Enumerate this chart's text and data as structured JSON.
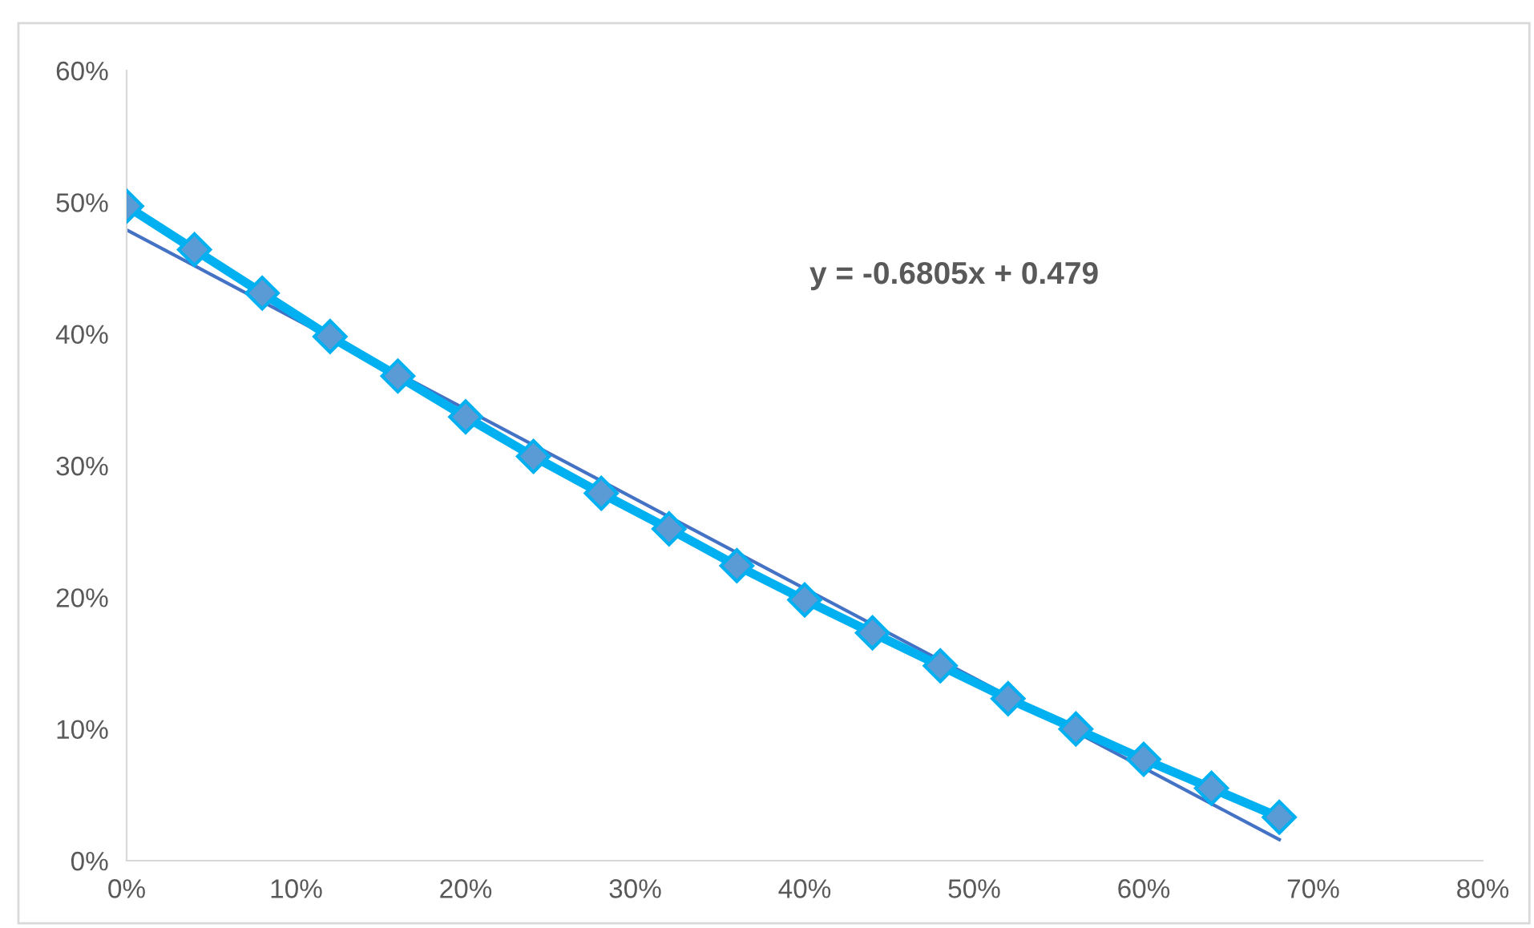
{
  "chart_data": {
    "type": "line",
    "xlim": [
      0,
      80
    ],
    "ylim": [
      0,
      60
    ],
    "xticks": [
      {
        "value": 0,
        "label": "0%"
      },
      {
        "value": 10,
        "label": "10%"
      },
      {
        "value": 20,
        "label": "20%"
      },
      {
        "value": 30,
        "label": "30%"
      },
      {
        "value": 40,
        "label": "40%"
      },
      {
        "value": 50,
        "label": "50%"
      },
      {
        "value": 60,
        "label": "60%"
      },
      {
        "value": 70,
        "label": "70%"
      },
      {
        "value": 80,
        "label": "80%"
      }
    ],
    "yticks": [
      {
        "value": 0,
        "label": "0%"
      },
      {
        "value": 10,
        "label": "10%"
      },
      {
        "value": 20,
        "label": "20%"
      },
      {
        "value": 30,
        "label": "30%"
      },
      {
        "value": 40,
        "label": "40%"
      },
      {
        "value": 50,
        "label": "50%"
      },
      {
        "value": 60,
        "label": "60%"
      }
    ],
    "grid": false,
    "legend": false,
    "series": [
      {
        "color": "#00b0f0",
        "marker": "diamond",
        "x": [
          0,
          4,
          8,
          12,
          16,
          20,
          24,
          28,
          32,
          36,
          40,
          44,
          48,
          52,
          56,
          60,
          64,
          68
        ],
        "values": [
          49.7,
          46.4,
          43.1,
          39.8,
          36.8,
          33.7,
          30.7,
          27.9,
          25.2,
          22.4,
          19.8,
          17.3,
          14.8,
          12.3,
          10.0,
          7.7,
          5.5,
          3.3
        ]
      },
      {
        "color": "#4472c4",
        "marker": "none",
        "x": [
          0,
          68
        ],
        "values": [
          47.9,
          1.6
        ]
      }
    ],
    "annotations": [
      "y = -0.6805x + 0.479"
    ]
  }
}
